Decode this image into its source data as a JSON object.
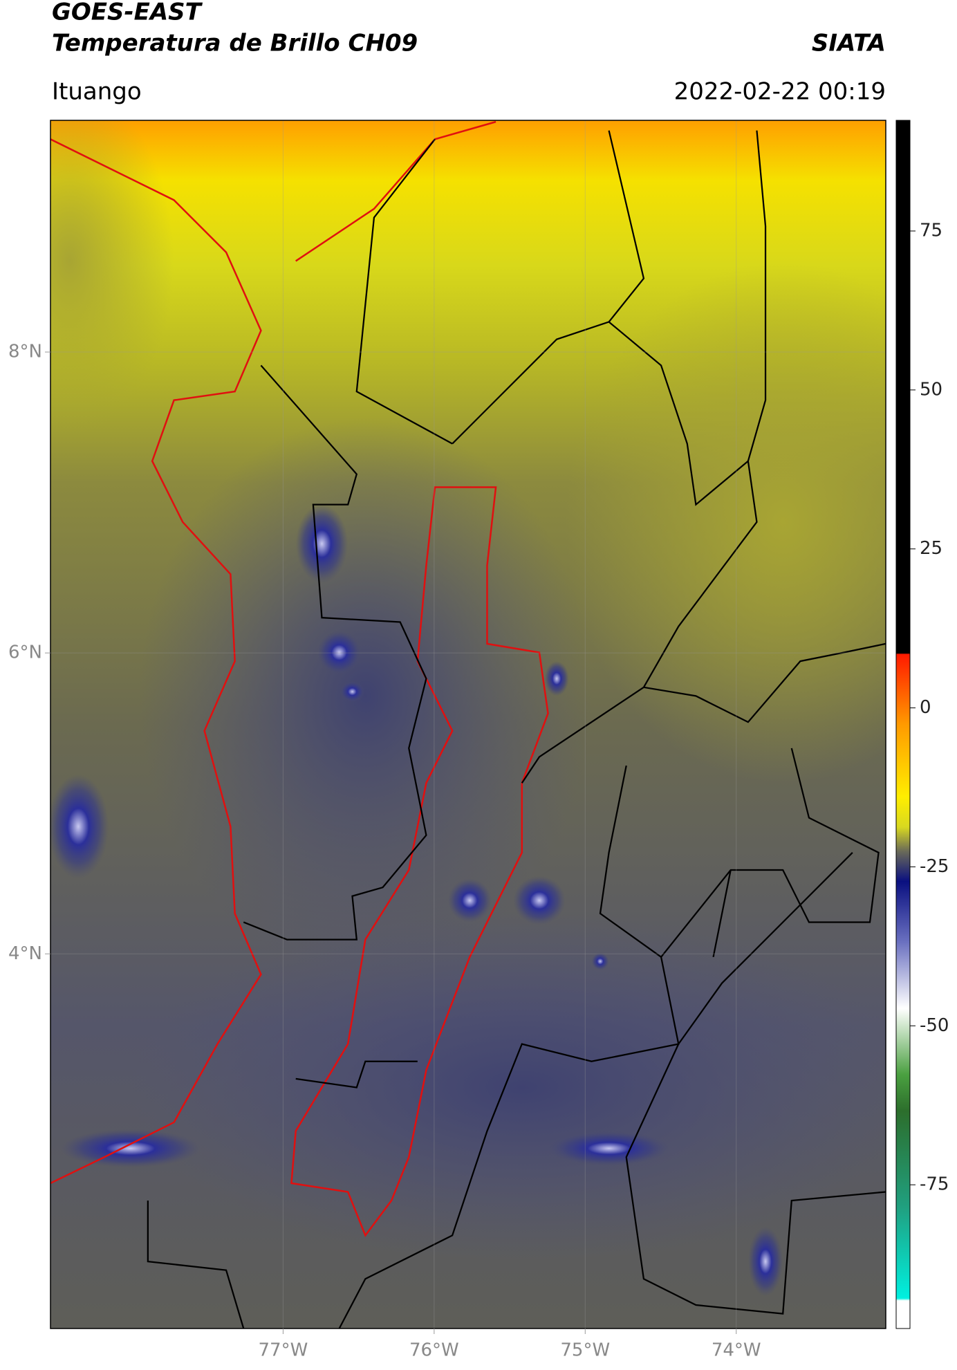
{
  "header": {
    "title": "GOES-EAST",
    "subtitle": "Temperatura de Brillo CH09",
    "source": "SIATA",
    "region": "Ituango",
    "datetime": "2022-02-22 00:19"
  },
  "map": {
    "lon_range": [
      -78.54,
      -73.01
    ],
    "lat_range": [
      1.51,
      9.54
    ],
    "lon_ticks": [
      {
        "value": -77,
        "label": "77°W"
      },
      {
        "value": -76,
        "label": "76°W"
      },
      {
        "value": -75,
        "label": "75°W"
      },
      {
        "value": -74,
        "label": "74°W"
      }
    ],
    "lat_ticks": [
      {
        "value": 8,
        "label": "8°N"
      },
      {
        "value": 6,
        "label": "6°N"
      },
      {
        "value": 4,
        "label": "4°N"
      }
    ]
  },
  "colorbar": {
    "range": [
      -97.6,
      92.4
    ],
    "ticks": [
      75,
      50,
      25,
      0,
      -25,
      -50,
      -75
    ]
  }
}
